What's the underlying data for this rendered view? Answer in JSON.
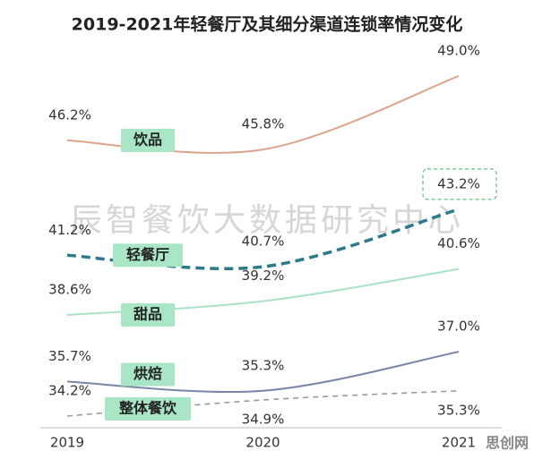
{
  "chart_data": {
    "type": "line",
    "title": "2019-2021年轻餐厅及其细分渠道连锁率情况变化",
    "watermark": "辰智餐饮大数据研究中心",
    "corner_mark": "思创网",
    "categories": [
      "2019",
      "2020",
      "2021"
    ],
    "series": [
      {
        "name": "饮品",
        "color": "#dea38c",
        "style": "solid",
        "values": [
          46.2,
          45.8,
          49.0
        ],
        "value_labels": [
          "46.2%",
          "45.8%",
          "49.0%"
        ]
      },
      {
        "name": "轻餐厅",
        "color": "#2a7a8c",
        "style": "bold-dashed",
        "highlight_last": true,
        "values": [
          41.2,
          40.7,
          43.2
        ],
        "value_labels": [
          "41.2%",
          "40.7%",
          "43.2%"
        ]
      },
      {
        "name": "甜品",
        "color": "#a9e3c6",
        "style": "solid",
        "values": [
          38.6,
          39.2,
          40.6
        ],
        "value_labels": [
          "38.6%",
          "39.2%",
          "40.6%"
        ]
      },
      {
        "name": "烘焙",
        "color": "#7a86a8",
        "style": "solid",
        "values": [
          35.7,
          35.3,
          37.0
        ],
        "value_labels": [
          "35.7%",
          "35.3%",
          "37.0%"
        ]
      },
      {
        "name": "整体餐饮",
        "color": "#9a9a9a",
        "style": "dashed",
        "values": [
          34.2,
          34.9,
          35.3
        ],
        "value_labels": [
          "34.2%",
          "34.9%",
          "35.3%"
        ]
      }
    ]
  }
}
